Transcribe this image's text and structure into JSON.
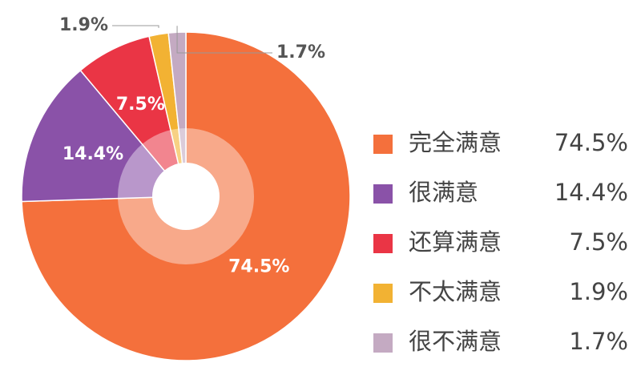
{
  "chart_data": {
    "type": "pie",
    "categories": [
      "完全满意",
      "很满意",
      "还算满意",
      "不太满意",
      "很不满意"
    ],
    "values": [
      74.5,
      14.4,
      7.5,
      1.9,
      1.7
    ],
    "value_labels": [
      "74.5%",
      "14.4%",
      "7.5%",
      "1.9%",
      "1.7%"
    ],
    "colors": [
      "#f4703c",
      "#8a52a8",
      "#ea3545",
      "#f2b233",
      "#c4aac2"
    ],
    "legend": "right"
  }
}
